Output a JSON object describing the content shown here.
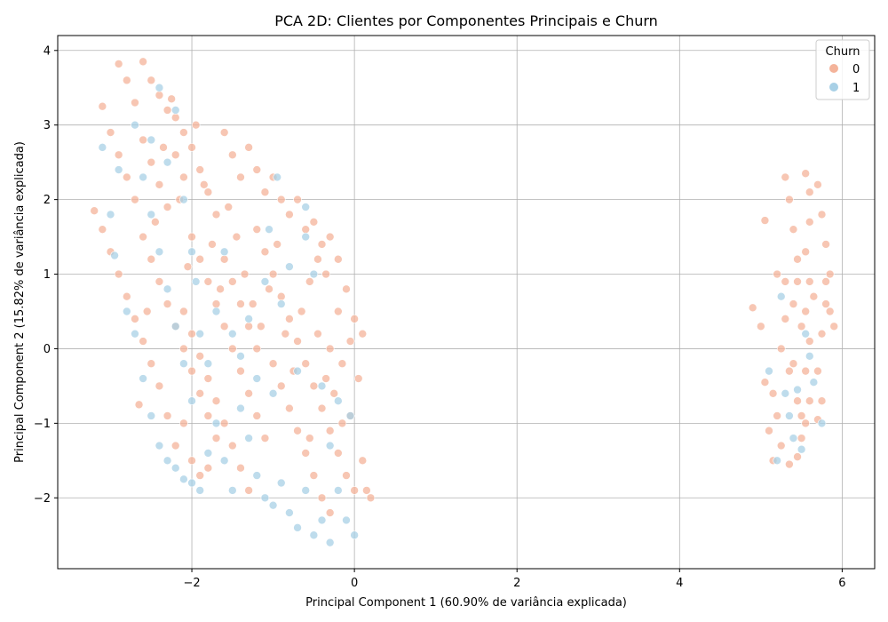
{
  "chart_data": {
    "type": "scatter",
    "title": "PCA 2D: Clientes por Componentes Principais e Churn",
    "xlabel": "Principal Component 1 (60.90% de variância explicada)",
    "ylabel": "Principal Component 2 (15.82% de variância explicada)",
    "xlim": [
      -3.65,
      6.4
    ],
    "ylim": [
      -2.95,
      4.2
    ],
    "xticks": [
      -2,
      0,
      2,
      4,
      6
    ],
    "xtick_labels": [
      "−2",
      "0",
      "2",
      "4",
      "6"
    ],
    "yticks": [
      -2,
      -1,
      0,
      1,
      2,
      3,
      4
    ],
    "ytick_labels": [
      "−2",
      "−1",
      "0",
      "1",
      "2",
      "3",
      "4"
    ],
    "grid": true,
    "legend": {
      "title": "Churn",
      "placement": "top-right"
    },
    "series": [
      {
        "name": "0",
        "color": "#f4b39a",
        "points": [
          [
            -3.1,
            3.25
          ],
          [
            -2.9,
            3.82
          ],
          [
            -2.8,
            3.6
          ],
          [
            -2.7,
            3.3
          ],
          [
            -2.6,
            3.85
          ],
          [
            -2.5,
            3.6
          ],
          [
            -2.4,
            3.4
          ],
          [
            -2.3,
            3.2
          ],
          [
            -2.2,
            3.1
          ],
          [
            -2.1,
            2.9
          ],
          [
            -3.0,
            2.9
          ],
          [
            -2.9,
            2.6
          ],
          [
            -2.8,
            2.3
          ],
          [
            -2.7,
            2.0
          ],
          [
            -2.6,
            2.8
          ],
          [
            -2.5,
            2.5
          ],
          [
            -2.4,
            2.2
          ],
          [
            -2.3,
            1.9
          ],
          [
            -2.2,
            2.6
          ],
          [
            -2.1,
            2.3
          ],
          [
            -3.2,
            1.85
          ],
          [
            -3.1,
            1.6
          ],
          [
            -3.0,
            1.3
          ],
          [
            -2.9,
            1.0
          ],
          [
            -2.8,
            0.7
          ],
          [
            -2.7,
            0.4
          ],
          [
            -2.6,
            0.1
          ],
          [
            -2.5,
            -0.2
          ],
          [
            -2.4,
            -0.5
          ],
          [
            -2.3,
            -0.9
          ],
          [
            -2.0,
            2.7
          ],
          [
            -1.9,
            2.4
          ],
          [
            -1.8,
            2.1
          ],
          [
            -1.7,
            1.8
          ],
          [
            -1.6,
            2.9
          ],
          [
            -1.5,
            2.6
          ],
          [
            -1.4,
            2.3
          ],
          [
            -1.3,
            2.7
          ],
          [
            -1.2,
            2.4
          ],
          [
            -1.1,
            2.1
          ],
          [
            -1.0,
            2.3
          ],
          [
            -0.9,
            2.0
          ],
          [
            -0.8,
            1.8
          ],
          [
            -0.7,
            2.0
          ],
          [
            -0.6,
            1.6
          ],
          [
            -0.5,
            1.7
          ],
          [
            -0.4,
            1.4
          ],
          [
            -0.3,
            1.5
          ],
          [
            -0.2,
            1.2
          ],
          [
            -0.1,
            0.8
          ],
          [
            -2.0,
            1.5
          ],
          [
            -1.9,
            1.2
          ],
          [
            -1.8,
            0.9
          ],
          [
            -1.7,
            0.6
          ],
          [
            -1.6,
            0.3
          ],
          [
            -1.5,
            0.0
          ],
          [
            -1.4,
            -0.3
          ],
          [
            -1.3,
            -0.6
          ],
          [
            -1.2,
            -0.9
          ],
          [
            -1.1,
            -1.2
          ],
          [
            -1.0,
            1.0
          ],
          [
            -0.9,
            0.7
          ],
          [
            -0.8,
            0.4
          ],
          [
            -0.7,
            0.1
          ],
          [
            -0.6,
            -0.2
          ],
          [
            -0.5,
            -0.5
          ],
          [
            -0.4,
            -0.8
          ],
          [
            -0.3,
            -1.1
          ],
          [
            -0.2,
            -1.4
          ],
          [
            -0.1,
            -1.7
          ],
          [
            -2.1,
            0.5
          ],
          [
            -2.0,
            0.2
          ],
          [
            -1.9,
            -0.1
          ],
          [
            -1.8,
            -0.4
          ],
          [
            -1.7,
            -0.7
          ],
          [
            -1.6,
            -1.0
          ],
          [
            -1.5,
            -1.3
          ],
          [
            -1.4,
            -1.6
          ],
          [
            -1.3,
            -1.9
          ],
          [
            -1.2,
            1.6
          ],
          [
            -1.1,
            1.3
          ],
          [
            -1.0,
            -0.2
          ],
          [
            -0.9,
            -0.5
          ],
          [
            -0.8,
            -0.8
          ],
          [
            -0.7,
            -1.1
          ],
          [
            -0.6,
            -1.4
          ],
          [
            -0.5,
            -1.7
          ],
          [
            -0.4,
            -2.0
          ],
          [
            -0.3,
            -2.2
          ],
          [
            0.0,
            -1.9
          ],
          [
            0.1,
            -1.5
          ],
          [
            0.1,
            0.2
          ],
          [
            0.0,
            0.4
          ],
          [
            -0.2,
            0.5
          ],
          [
            -0.3,
            0.0
          ],
          [
            0.05,
            -0.4
          ],
          [
            0.2,
            -2.0
          ],
          [
            0.15,
            -1.9
          ],
          [
            -0.05,
            -0.9
          ],
          [
            -0.15,
            -1.0
          ],
          [
            -2.6,
            1.5
          ],
          [
            -2.5,
            1.2
          ],
          [
            -2.4,
            0.9
          ],
          [
            -2.3,
            0.6
          ],
          [
            -2.2,
            0.3
          ],
          [
            -2.1,
            0.0
          ],
          [
            -2.0,
            -0.3
          ],
          [
            -1.9,
            -0.6
          ],
          [
            -1.8,
            -0.9
          ],
          [
            -1.7,
            -1.2
          ],
          [
            -2.2,
            -1.3
          ],
          [
            -2.1,
            -1.0
          ],
          [
            -2.0,
            -1.5
          ],
          [
            -1.9,
            -1.7
          ],
          [
            -1.8,
            -1.6
          ],
          [
            -1.6,
            1.2
          ],
          [
            -1.5,
            0.9
          ],
          [
            -1.4,
            0.6
          ],
          [
            -1.3,
            0.3
          ],
          [
            -1.2,
            0.0
          ],
          [
            -2.65,
            -0.75
          ],
          [
            -2.55,
            0.5
          ],
          [
            -2.45,
            1.7
          ],
          [
            -2.35,
            2.7
          ],
          [
            -2.25,
            3.35
          ],
          [
            -2.15,
            2.0
          ],
          [
            -2.05,
            1.1
          ],
          [
            -1.95,
            3.0
          ],
          [
            -1.85,
            2.2
          ],
          [
            -1.75,
            1.4
          ],
          [
            -1.65,
            0.8
          ],
          [
            -1.55,
            1.9
          ],
          [
            -1.45,
            1.5
          ],
          [
            -1.35,
            1.0
          ],
          [
            -1.25,
            0.6
          ],
          [
            -1.15,
            0.3
          ],
          [
            -1.05,
            0.8
          ],
          [
            -0.95,
            1.4
          ],
          [
            -0.85,
            0.2
          ],
          [
            -0.75,
            -0.3
          ],
          [
            -0.65,
            0.5
          ],
          [
            -0.55,
            0.9
          ],
          [
            -0.45,
            0.2
          ],
          [
            -0.35,
            -0.4
          ],
          [
            -0.25,
            -0.6
          ],
          [
            -0.15,
            -0.2
          ],
          [
            -0.05,
            0.1
          ],
          [
            -0.35,
            1.0
          ],
          [
            -0.45,
            1.2
          ],
          [
            -0.55,
            -1.2
          ],
          [
            4.9,
            0.55
          ],
          [
            5.0,
            0.3
          ],
          [
            5.05,
            -0.45
          ],
          [
            5.1,
            -1.1
          ],
          [
            5.15,
            -1.5
          ],
          [
            5.2,
            -0.9
          ],
          [
            5.25,
            0.0
          ],
          [
            5.3,
            0.9
          ],
          [
            5.35,
            -1.55
          ],
          [
            5.2,
            1.0
          ],
          [
            5.3,
            2.3
          ],
          [
            5.35,
            2.0
          ],
          [
            5.4,
            1.6
          ],
          [
            5.45,
            1.2
          ],
          [
            5.3,
            0.4
          ],
          [
            5.4,
            -0.2
          ],
          [
            5.45,
            -0.7
          ],
          [
            5.5,
            -1.2
          ],
          [
            5.35,
            -0.3
          ],
          [
            5.4,
            0.6
          ],
          [
            5.55,
            2.35
          ],
          [
            5.6,
            2.1
          ],
          [
            5.6,
            1.7
          ],
          [
            5.55,
            1.3
          ],
          [
            5.6,
            0.9
          ],
          [
            5.55,
            0.5
          ],
          [
            5.6,
            0.1
          ],
          [
            5.55,
            -0.3
          ],
          [
            5.6,
            -0.7
          ],
          [
            5.55,
            -1.0
          ],
          [
            5.7,
            2.2
          ],
          [
            5.75,
            1.8
          ],
          [
            5.8,
            1.4
          ],
          [
            5.85,
            1.0
          ],
          [
            5.8,
            0.6
          ],
          [
            5.9,
            0.3
          ],
          [
            5.75,
            0.2
          ],
          [
            5.7,
            -0.3
          ],
          [
            5.75,
            -0.7
          ],
          [
            5.7,
            -0.95
          ],
          [
            5.05,
            1.72
          ],
          [
            5.15,
            -0.6
          ],
          [
            5.25,
            -1.3
          ],
          [
            5.45,
            -1.45
          ],
          [
            5.5,
            -0.9
          ],
          [
            5.65,
            0.7
          ],
          [
            5.85,
            0.5
          ],
          [
            5.8,
            0.9
          ],
          [
            5.5,
            0.3
          ],
          [
            5.45,
            0.9
          ]
        ]
      },
      {
        "name": "1",
        "color": "#a8d0e6",
        "points": [
          [
            -3.1,
            2.7
          ],
          [
            -2.9,
            2.4
          ],
          [
            -2.7,
            3.0
          ],
          [
            -2.6,
            2.3
          ],
          [
            -2.5,
            1.8
          ],
          [
            -2.4,
            1.3
          ],
          [
            -2.3,
            0.8
          ],
          [
            -2.2,
            0.3
          ],
          [
            -2.1,
            -0.2
          ],
          [
            -2.0,
            -0.7
          ],
          [
            -2.8,
            0.5
          ],
          [
            -2.7,
            0.2
          ],
          [
            -2.6,
            -0.4
          ],
          [
            -2.5,
            -0.9
          ],
          [
            -2.4,
            -1.3
          ],
          [
            -2.3,
            -1.5
          ],
          [
            -2.2,
            -1.6
          ],
          [
            -2.1,
            -1.75
          ],
          [
            -2.0,
            -1.8
          ],
          [
            -1.9,
            -1.9
          ],
          [
            -1.8,
            -1.4
          ],
          [
            -1.7,
            -1.0
          ],
          [
            -1.6,
            -1.5
          ],
          [
            -1.5,
            -1.9
          ],
          [
            -1.4,
            -0.8
          ],
          [
            -1.3,
            -1.2
          ],
          [
            -1.2,
            -1.7
          ],
          [
            -1.1,
            -2.0
          ],
          [
            -1.0,
            -2.1
          ],
          [
            -0.9,
            -1.8
          ],
          [
            -0.8,
            -2.2
          ],
          [
            -0.7,
            -2.4
          ],
          [
            -0.6,
            -1.9
          ],
          [
            -0.5,
            -2.5
          ],
          [
            -0.4,
            -2.3
          ],
          [
            -0.3,
            -2.6
          ],
          [
            -0.2,
            -1.9
          ],
          [
            -0.1,
            -2.3
          ],
          [
            0.0,
            -2.5
          ],
          [
            -0.05,
            -0.9
          ],
          [
            -1.9,
            0.2
          ],
          [
            -1.8,
            -0.2
          ],
          [
            -1.7,
            0.5
          ],
          [
            -1.6,
            1.3
          ],
          [
            -1.5,
            0.2
          ],
          [
            -1.4,
            -0.1
          ],
          [
            -1.3,
            0.4
          ],
          [
            -1.2,
            -0.4
          ],
          [
            -1.1,
            0.9
          ],
          [
            -1.0,
            -0.6
          ],
          [
            -0.9,
            0.6
          ],
          [
            -0.8,
            1.1
          ],
          [
            -0.7,
            -0.3
          ],
          [
            -0.6,
            1.5
          ],
          [
            -0.5,
            1.0
          ],
          [
            -0.4,
            -0.5
          ],
          [
            -0.3,
            -1.3
          ],
          [
            -0.2,
            -0.7
          ],
          [
            -3.0,
            1.8
          ],
          [
            -2.95,
            1.25
          ],
          [
            -2.4,
            3.5
          ],
          [
            -2.5,
            2.8
          ],
          [
            -2.3,
            2.5
          ],
          [
            -2.2,
            3.2
          ],
          [
            -2.1,
            2.0
          ],
          [
            -2.0,
            1.3
          ],
          [
            -1.95,
            0.9
          ],
          [
            -0.95,
            2.3
          ],
          [
            -0.6,
            1.9
          ],
          [
            -1.05,
            1.6
          ],
          [
            5.1,
            -0.3
          ],
          [
            5.2,
            -1.5
          ],
          [
            5.3,
            -0.6
          ],
          [
            5.25,
            0.7
          ],
          [
            5.4,
            -1.2
          ],
          [
            5.5,
            -1.35
          ],
          [
            5.35,
            -0.9
          ],
          [
            5.6,
            -0.1
          ],
          [
            5.75,
            -1.0
          ],
          [
            5.65,
            -0.45
          ],
          [
            5.45,
            -0.55
          ],
          [
            5.55,
            0.2
          ]
        ]
      }
    ]
  }
}
